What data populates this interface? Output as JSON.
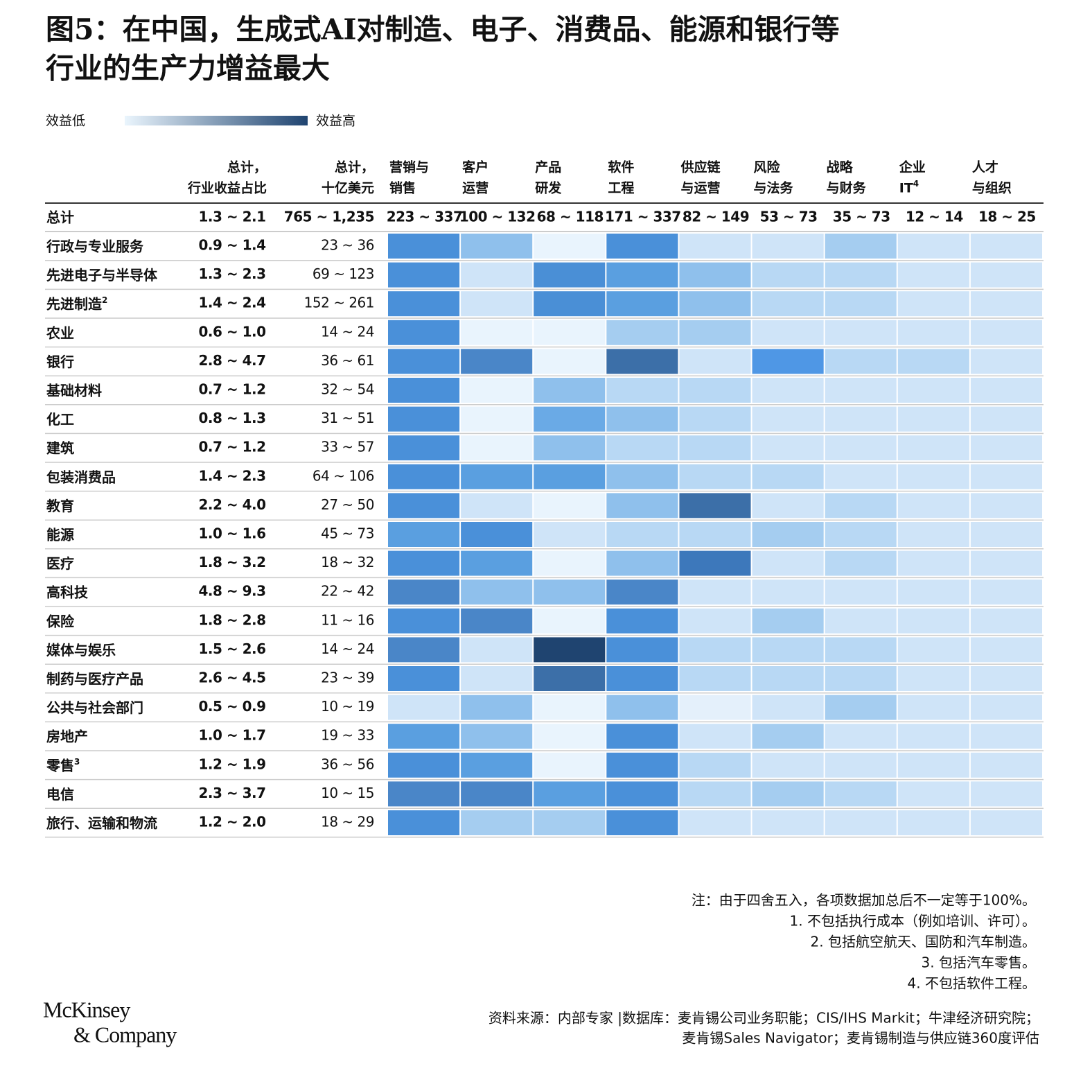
{
  "title": [
    "图5：在中国，生成式AI对制造、电子、消费品、能源和银行等",
    "行业的生产力增益最大"
  ],
  "legend": {
    "low": "效益低",
    "high": "效益高",
    "colors": [
      "#eaf5fd",
      "#1f4470"
    ]
  },
  "table": {
    "columns": [
      {
        "lines": [
          "总计，",
          "行业收益占比"
        ]
      },
      {
        "lines": [
          "总计，",
          "十亿美元"
        ]
      },
      {
        "lines": [
          "营销与",
          "销售"
        ]
      },
      {
        "lines": [
          "客户",
          "运营"
        ]
      },
      {
        "lines": [
          "产品",
          "研发"
        ]
      },
      {
        "lines": [
          "软件",
          "工程"
        ]
      },
      {
        "lines": [
          "供应链",
          "与运营"
        ]
      },
      {
        "lines": [
          "风险",
          "与法务"
        ]
      },
      {
        "lines": [
          "战略",
          "与财务"
        ]
      },
      {
        "lines": [
          "企业",
          "IT"
        ],
        "sup": "4"
      },
      {
        "lines": [
          "人才",
          "与组织"
        ]
      }
    ],
    "total": {
      "label": "总计",
      "values": [
        "1.3 ~ 2.1",
        "765 ~ 1,235",
        "223 ~ 337",
        "100 ~ 132",
        "68 ~ 118",
        "171 ~ 337",
        "82 ~ 149",
        "53 ~ 73",
        "35 ~ 73",
        "12 ~ 14",
        "18 ~ 25"
      ]
    },
    "rows": [
      {
        "label": "行政与专业服务",
        "share": "0.9 ~ 1.4",
        "usd": "23 ~ 36",
        "colors": [
          "#4a90d9",
          "#8fc0ec",
          "#e9f4fd",
          "#4a90d9",
          "#cfe4f8",
          "#cfe4f8",
          "#a5cdf0",
          "#cfe4f8",
          "#cfe4f8"
        ]
      },
      {
        "label": "先进电子与半导体",
        "share": "1.3 ~ 2.3",
        "usd": "69 ~ 123",
        "colors": [
          "#4a90d9",
          "#cfe4f8",
          "#4a8fd6",
          "#5a9fe0",
          "#8fc0ec",
          "#b8d8f4",
          "#b8d8f4",
          "#cfe4f8",
          "#cfe4f8"
        ]
      },
      {
        "label": "先进制造",
        "sup": "2",
        "share": "1.4 ~ 2.4",
        "usd": "152 ~ 261",
        "colors": [
          "#4a90d9",
          "#cfe4f8",
          "#4a8fd6",
          "#5a9fe0",
          "#8fc0ec",
          "#b8d8f4",
          "#b8d8f4",
          "#cfe4f8",
          "#cfe4f8"
        ]
      },
      {
        "label": "农业",
        "share": "0.6 ~ 1.0",
        "usd": "14 ~ 24",
        "colors": [
          "#4a90d9",
          "#e9f4fd",
          "#e9f4fd",
          "#a5cdf0",
          "#a5cdf0",
          "#cfe4f8",
          "#cfe4f8",
          "#cfe4f8",
          "#cfe4f8"
        ]
      },
      {
        "label": "银行",
        "share": "2.8 ~ 4.7",
        "usd": "36 ~ 61",
        "colors": [
          "#4a90d9",
          "#4a86c8",
          "#e9f4fd",
          "#3c6fa8",
          "#cfe4f8",
          "#4f97e5",
          "#b8d8f4",
          "#b8d8f4",
          "#cfe4f8"
        ]
      },
      {
        "label": "基础材料",
        "share": "0.7 ~ 1.2",
        "usd": "32 ~ 54",
        "colors": [
          "#4a90d9",
          "#e9f4fd",
          "#8fc0ec",
          "#b8d8f4",
          "#b8d8f4",
          "#cfe4f8",
          "#cfe4f8",
          "#cfe4f8",
          "#cfe4f8"
        ]
      },
      {
        "label": "化工",
        "share": "0.8 ~ 1.3",
        "usd": "31 ~ 51",
        "colors": [
          "#4a90d9",
          "#e9f4fd",
          "#6aaae6",
          "#8fc0ec",
          "#b8d8f4",
          "#cfe4f8",
          "#cfe4f8",
          "#cfe4f8",
          "#cfe4f8"
        ]
      },
      {
        "label": "建筑",
        "share": "0.7 ~ 1.2",
        "usd": "33 ~ 57",
        "colors": [
          "#4a90d9",
          "#e9f4fd",
          "#8fc0ec",
          "#b8d8f4",
          "#b8d8f4",
          "#cfe4f8",
          "#cfe4f8",
          "#cfe4f8",
          "#cfe4f8"
        ]
      },
      {
        "label": "包装消费品",
        "share": "1.4 ~ 2.3",
        "usd": "64 ~ 106",
        "colors": [
          "#4a90d9",
          "#5a9fe0",
          "#5a9fe0",
          "#8fc0ec",
          "#b8d8f4",
          "#b8d8f4",
          "#cfe4f8",
          "#cfe4f8",
          "#cfe4f8"
        ]
      },
      {
        "label": "教育",
        "share": "2.2 ~ 4.0",
        "usd": "27 ~ 50",
        "colors": [
          "#4a90d9",
          "#cfe4f8",
          "#e9f4fd",
          "#8fc0ec",
          "#3c6fa8",
          "#cfe4f8",
          "#b8d8f4",
          "#cfe4f8",
          "#cfe4f8"
        ]
      },
      {
        "label": "能源",
        "share": "1.0 ~ 1.6",
        "usd": "45 ~ 73",
        "colors": [
          "#5a9fe0",
          "#4a90d9",
          "#cfe4f8",
          "#b8d8f4",
          "#b8d8f4",
          "#a5cdf0",
          "#b8d8f4",
          "#cfe4f8",
          "#cfe4f8"
        ]
      },
      {
        "label": "医疗",
        "share": "1.8 ~ 3.2",
        "usd": "18 ~ 32",
        "colors": [
          "#4a90d9",
          "#5a9fe0",
          "#e9f4fd",
          "#8fc0ec",
          "#3d78bb",
          "#cfe4f8",
          "#b8d8f4",
          "#cfe4f8",
          "#cfe4f8"
        ]
      },
      {
        "label": "高科技",
        "share": "4.8 ~ 9.3",
        "usd": "22 ~ 42",
        "colors": [
          "#4a86c8",
          "#8fc0ec",
          "#8fc0ec",
          "#4a86c8",
          "#cfe4f8",
          "#cfe4f8",
          "#cfe4f8",
          "#cfe4f8",
          "#cfe4f8"
        ]
      },
      {
        "label": "保险",
        "share": "1.8 ~ 2.8",
        "usd": "11 ~ 16",
        "colors": [
          "#4a90d9",
          "#4a86c8",
          "#e9f4fd",
          "#4a90d9",
          "#cfe4f8",
          "#a5cdf0",
          "#cfe4f8",
          "#cfe4f8",
          "#cfe4f8"
        ]
      },
      {
        "label": "媒体与娱乐",
        "share": "1.5 ~ 2.6",
        "usd": "14 ~ 24",
        "colors": [
          "#4a86c8",
          "#cfe4f8",
          "#1f4470",
          "#4a90d9",
          "#b8d8f4",
          "#b8d8f4",
          "#b8d8f4",
          "#cfe4f8",
          "#cfe4f8"
        ]
      },
      {
        "label": "制药与医疗产品",
        "share": "2.6 ~ 4.5",
        "usd": "23 ~ 39",
        "colors": [
          "#4a90d9",
          "#cfe4f8",
          "#3c6fa8",
          "#4a90d9",
          "#b8d8f4",
          "#b8d8f4",
          "#b8d8f4",
          "#cfe4f8",
          "#cfe4f8"
        ]
      },
      {
        "label": "公共与社会部门",
        "share": "0.5 ~ 0.9",
        "usd": "10 ~ 19",
        "colors": [
          "#cfe4f8",
          "#8fc0ec",
          "#e9f4fd",
          "#8fc0ec",
          "#e4f0fb",
          "#cfe4f8",
          "#a5cdf0",
          "#cfe4f8",
          "#cfe4f8"
        ]
      },
      {
        "label": "房地产",
        "share": "1.0 ~ 1.7",
        "usd": "19 ~ 33",
        "colors": [
          "#5a9fe0",
          "#8fc0ec",
          "#e9f4fd",
          "#4a90d9",
          "#cfe4f8",
          "#a5cdf0",
          "#cfe4f8",
          "#cfe4f8",
          "#cfe4f8"
        ]
      },
      {
        "label": "零售",
        "sup": "3",
        "share": "1.2 ~ 1.9",
        "usd": "36 ~ 56",
        "colors": [
          "#4a90d9",
          "#5a9fe0",
          "#e9f4fd",
          "#4a90d9",
          "#b8d8f4",
          "#cfe4f8",
          "#cfe4f8",
          "#cfe4f8",
          "#cfe4f8"
        ]
      },
      {
        "label": "电信",
        "share": "2.3 ~ 3.7",
        "usd": "10 ~ 15",
        "colors": [
          "#4a86c8",
          "#4a86c8",
          "#5a9fe0",
          "#4a90d9",
          "#b8d8f4",
          "#a5cdf0",
          "#b8d8f4",
          "#cfe4f8",
          "#cfe4f8"
        ]
      },
      {
        "label": "旅行、运输和物流",
        "share": "1.2 ~ 2.0",
        "usd": "18 ~ 29",
        "colors": [
          "#4a90d9",
          "#a5cdf0",
          "#a5cdf0",
          "#4a90d9",
          "#cfe4f8",
          "#cfe4f8",
          "#cfe4f8",
          "#cfe4f8",
          "#cfe4f8"
        ]
      }
    ]
  },
  "notes": [
    "注：由于四舍五入，各项数据加总后不一定等于100%。",
    "1. 不包括执行成本（例如培训、许可）。",
    "2. 包括航空航天、国防和汽车制造。",
    "3. 包括汽车零售。",
    "4. 不包括软件工程。"
  ],
  "source": [
    "资料来源：内部专家 |数据库：麦肯锡公司业务职能；CIS/IHS Markit；牛津经济研究院；",
    "麦肯锡Sales Navigator；麦肯锡制造与供应链360度评估"
  ],
  "logo": [
    "McKinsey",
    "& Company"
  ]
}
